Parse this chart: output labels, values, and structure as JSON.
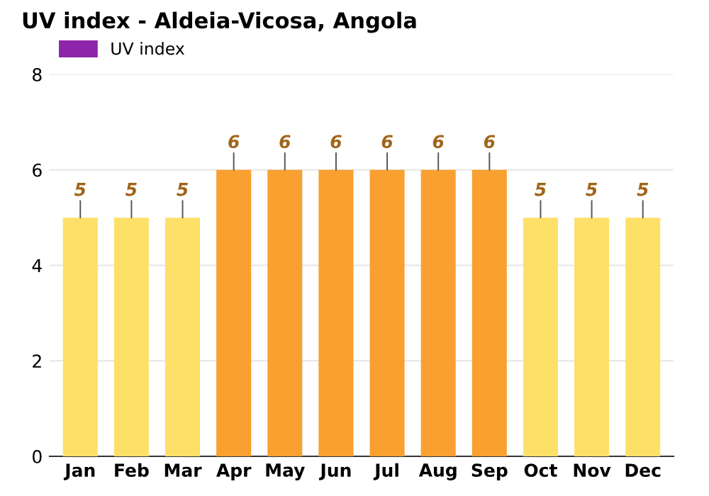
{
  "chart_data": {
    "type": "bar",
    "title": "UV index - Aldeia-Vicosa, Angola",
    "categories": [
      "Jan",
      "Feb",
      "Mar",
      "Apr",
      "May",
      "Jun",
      "Jul",
      "Aug",
      "Sep",
      "Oct",
      "Nov",
      "Dec"
    ],
    "series": [
      {
        "name": "UV index",
        "color": "#8e24aa",
        "values": [
          5,
          5,
          5,
          6,
          6,
          6,
          6,
          6,
          6,
          5,
          5,
          5
        ],
        "colors": [
          "#fde068",
          "#fde068",
          "#fde068",
          "#f9a030",
          "#f9a030",
          "#f9a030",
          "#f9a030",
          "#f9a030",
          "#f9a030",
          "#fde068",
          "#fde068",
          "#fde068"
        ]
      }
    ],
    "ylim": [
      0,
      8
    ],
    "yticks": [
      0,
      2,
      4,
      6,
      8
    ],
    "grid": "y",
    "legend": "top left",
    "data_labels": true
  }
}
